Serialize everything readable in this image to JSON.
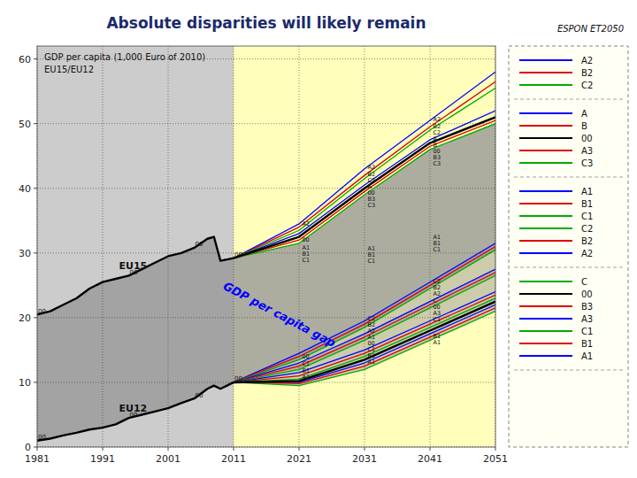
{
  "chart_data": {
    "type": "line",
    "title": "Absolute disparities will likely remain",
    "subtitle": [
      "GDP per capita (1,000 Euro of 2010)",
      "EU15/EU12"
    ],
    "xlim": [
      1981,
      2051
    ],
    "xticks": [
      1981,
      1991,
      2001,
      2011,
      2021,
      2031,
      2041,
      2051
    ],
    "ylim": [
      0,
      62
    ],
    "yticks": [
      0,
      10,
      20,
      30,
      40,
      50,
      60
    ],
    "grid": true,
    "regions": [
      {
        "from": 1981,
        "to": 2011,
        "color": "#cccccc"
      },
      {
        "from": 2011,
        "to": 2051,
        "color": "#ffffbb"
      }
    ],
    "series": [
      {
        "color": "#000000",
        "x": [
          1981,
          1983,
          1985,
          1987,
          1989,
          1991,
          1993,
          1995,
          1997,
          1999,
          2001,
          2003,
          2005,
          2007,
          2008,
          2009,
          2010,
          2011
        ],
        "values": [
          20.5,
          21.0,
          22.0,
          23.0,
          24.5,
          25.5,
          26.0,
          26.5,
          27.5,
          28.5,
          29.5,
          30.0,
          30.8,
          32.2,
          32.5,
          28.8,
          29.0,
          29.2
        ]
      },
      {
        "color": "#000000",
        "x": [
          1981,
          1983,
          1985,
          1987,
          1989,
          1991,
          1993,
          1995,
          1997,
          1999,
          2001,
          2003,
          2005,
          2007,
          2008,
          2009,
          2010,
          2011
        ],
        "values": [
          1.0,
          1.3,
          1.8,
          2.2,
          2.7,
          3.0,
          3.5,
          4.5,
          5.0,
          5.5,
          6.0,
          6.8,
          7.5,
          9.0,
          9.5,
          9.0,
          9.5,
          10.0
        ]
      },
      {
        "color": "#0000ff",
        "x": [
          2011,
          2021,
          2031,
          2041,
          2051
        ],
        "values": [
          29.2,
          34.5,
          43.0,
          50.5,
          58.0
        ]
      },
      {
        "color": "#dd0000",
        "x": [
          2011,
          2021,
          2031,
          2041,
          2051
        ],
        "values": [
          29.2,
          34.0,
          42.0,
          49.5,
          56.5
        ]
      },
      {
        "color": "#00aa00",
        "x": [
          2011,
          2021,
          2031,
          2041,
          2051
        ],
        "values": [
          29.2,
          33.5,
          41.5,
          49.0,
          55.5
        ]
      },
      {
        "color": "#0000ff",
        "x": [
          2011,
          2021,
          2031,
          2041,
          2051
        ],
        "values": [
          29.2,
          33.0,
          40.5,
          47.5,
          52.0
        ]
      },
      {
        "color": "#000000",
        "x": [
          2011,
          2021,
          2031,
          2041,
          2051
        ],
        "values": [
          29.2,
          32.5,
          40.0,
          47.0,
          51.0
        ]
      },
      {
        "color": "#dd0000",
        "x": [
          2011,
          2021,
          2031,
          2041,
          2051
        ],
        "values": [
          29.2,
          32.0,
          39.5,
          46.5,
          50.5
        ]
      },
      {
        "color": "#00aa00",
        "x": [
          2011,
          2021,
          2031,
          2041,
          2051
        ],
        "values": [
          29.2,
          31.5,
          39.0,
          46.0,
          50.0
        ]
      },
      {
        "color": "#0000ff",
        "x": [
          2011,
          2021,
          2031,
          2041,
          2051
        ],
        "values": [
          10.0,
          14.5,
          19.5,
          25.5,
          31.5
        ]
      },
      {
        "color": "#dd0000",
        "x": [
          2011,
          2021,
          2031,
          2041,
          2051
        ],
        "values": [
          10.0,
          14.0,
          19.0,
          25.0,
          31.0
        ]
      },
      {
        "color": "#00aa00",
        "x": [
          2011,
          2021,
          2031,
          2041,
          2051
        ],
        "values": [
          10.0,
          13.5,
          18.5,
          24.5,
          30.5
        ]
      },
      {
        "color": "#0000ff",
        "x": [
          2011,
          2021,
          2031,
          2041,
          2051
        ],
        "values": [
          10.0,
          13.0,
          17.5,
          22.5,
          27.5
        ]
      },
      {
        "color": "#dd0000",
        "x": [
          2011,
          2021,
          2031,
          2041,
          2051
        ],
        "values": [
          10.0,
          12.5,
          17.0,
          22.0,
          27.0
        ]
      },
      {
        "color": "#00aa00",
        "x": [
          2011,
          2021,
          2031,
          2041,
          2051
        ],
        "values": [
          10.0,
          12.0,
          16.5,
          21.5,
          26.5
        ]
      },
      {
        "color": "#0000ff",
        "x": [
          2011,
          2021,
          2031,
          2041,
          2051
        ],
        "values": [
          10.0,
          11.5,
          15.0,
          19.5,
          24.0
        ]
      },
      {
        "color": "#dd0000",
        "x": [
          2011,
          2021,
          2031,
          2041,
          2051
        ],
        "values": [
          10.0,
          11.0,
          14.5,
          19.0,
          23.5
        ]
      },
      {
        "color": "#00aa00",
        "x": [
          2011,
          2021,
          2031,
          2041,
          2051
        ],
        "values": [
          10.0,
          10.5,
          14.0,
          18.5,
          23.0
        ]
      },
      {
        "color": "#000000",
        "x": [
          2011,
          2021,
          2031,
          2041,
          2051
        ],
        "values": [
          10.0,
          10.2,
          13.5,
          18.0,
          22.5
        ]
      },
      {
        "color": "#0000ff",
        "x": [
          2011,
          2021,
          2031,
          2041,
          2051
        ],
        "values": [
          10.0,
          10.0,
          13.0,
          17.5,
          22.0
        ]
      },
      {
        "color": "#dd0000",
        "x": [
          2011,
          2021,
          2031,
          2041,
          2051
        ],
        "values": [
          10.0,
          9.8,
          12.5,
          17.0,
          21.5
        ]
      },
      {
        "color": "#00aa00",
        "x": [
          2011,
          2021,
          2031,
          2041,
          2051
        ],
        "values": [
          10.0,
          9.5,
          12.0,
          16.5,
          21.0
        ]
      }
    ],
    "annotations": [
      {
        "text": "00",
        "x": 1981,
        "y": 20.5
      },
      {
        "text": "00",
        "x": 1995,
        "y": 26.5
      },
      {
        "text": "00",
        "x": 2005,
        "y": 30.8
      },
      {
        "text": "00",
        "x": 2011,
        "y": 29.2
      },
      {
        "text": "00",
        "x": 1981,
        "y": 1.0
      },
      {
        "text": "00",
        "x": 1995,
        "y": 4.5
      },
      {
        "text": "00",
        "x": 2005,
        "y": 7.5
      },
      {
        "text": "00",
        "x": 2011,
        "y": 10.0
      },
      {
        "text": "EU15",
        "x": 1993.5,
        "y": 27.5
      },
      {
        "text": "EU12",
        "x": 1993.5,
        "y": 5.5
      },
      {
        "text": "GDP per capita gap",
        "x": 2018,
        "y": 20.5,
        "color": "blue"
      },
      {
        "text": "A2",
        "x": 2021.2,
        "y": 34.5
      },
      {
        "text": "00",
        "x": 2021.2,
        "y": 32.0
      },
      {
        "text": "A1",
        "x": 2021.2,
        "y": 30.8
      },
      {
        "text": "B1",
        "x": 2021.2,
        "y": 30.0
      },
      {
        "text": "C1",
        "x": 2021.2,
        "y": 29.0
      },
      {
        "text": "00",
        "x": 2021.2,
        "y": 14.0
      },
      {
        "text": "C1",
        "x": 2021.2,
        "y": 12.8
      },
      {
        "text": "B1",
        "x": 2021.2,
        "y": 11.8
      },
      {
        "text": "A1",
        "x": 2021.2,
        "y": 10.9
      },
      {
        "text": "A2",
        "x": 2031.2,
        "y": 43.2
      },
      {
        "text": "B2",
        "x": 2031.2,
        "y": 42.1
      },
      {
        "text": "C2",
        "x": 2031.2,
        "y": 41.6
      },
      {
        "text": "A",
        "x": 2031.2,
        "y": 40.6
      },
      {
        "text": "00",
        "x": 2031.2,
        "y": 40.1
      },
      {
        "text": "B3",
        "x": 2031.2,
        "y": 39.6
      },
      {
        "text": "C3",
        "x": 2031.2,
        "y": 39.1
      },
      {
        "text": "A1",
        "x": 2031.2,
        "y": 30.6
      },
      {
        "text": "B1",
        "x": 2031.2,
        "y": 30.0
      },
      {
        "text": "C1",
        "x": 2031.2,
        "y": 29.5
      },
      {
        "text": "C2",
        "x": 2031.2,
        "y": 19.8
      },
      {
        "text": "B2",
        "x": 2031.2,
        "y": 19.2
      },
      {
        "text": "A2",
        "x": 2031.2,
        "y": 18.6
      },
      {
        "text": "A1",
        "x": 2031.2,
        "y": 17.6
      },
      {
        "text": "00",
        "x": 2031.2,
        "y": 17.0
      },
      {
        "text": "C1",
        "x": 2031.2,
        "y": 16.4
      },
      {
        "text": "B1",
        "x": 2031.2,
        "y": 15.8
      },
      {
        "text": "A1",
        "x": 2031.2,
        "y": 15.2
      },
      {
        "text": "A2",
        "x": 2041.2,
        "y": 50.6
      },
      {
        "text": "B2",
        "x": 2041.2,
        "y": 49.6
      },
      {
        "text": "C2",
        "x": 2041.2,
        "y": 49.1
      },
      {
        "text": "A",
        "x": 2041.2,
        "y": 47.6
      },
      {
        "text": "B",
        "x": 2041.2,
        "y": 47.1
      },
      {
        "text": "00",
        "x": 2041.2,
        "y": 46.6
      },
      {
        "text": "B3",
        "x": 2041.2,
        "y": 46.1
      },
      {
        "text": "C3",
        "x": 2041.2,
        "y": 45.6
      },
      {
        "text": "A1",
        "x": 2041.2,
        "y": 32.5
      },
      {
        "text": "B1",
        "x": 2041.2,
        "y": 31.8
      },
      {
        "text": "C1",
        "x": 2041.2,
        "y": 31.2
      },
      {
        "text": "C2",
        "x": 2041.2,
        "y": 25.6
      },
      {
        "text": "B2",
        "x": 2041.2,
        "y": 25.1
      },
      {
        "text": "A2",
        "x": 2041.2,
        "y": 24.0
      },
      {
        "text": "C",
        "x": 2041.2,
        "y": 22.6
      },
      {
        "text": "00",
        "x": 2041.2,
        "y": 22.1
      },
      {
        "text": "A3",
        "x": 2041.2,
        "y": 21.6
      },
      {
        "text": "C1",
        "x": 2041.2,
        "y": 21.1
      },
      {
        "text": "B1",
        "x": 2041.2,
        "y": 17.1
      },
      {
        "text": "A1",
        "x": 2041.2,
        "y": 16.5
      },
      {
        "text": "ESPON ET2050"
      }
    ],
    "legend_groups": [
      [
        {
          "name": "A2",
          "color": "#0000ff"
        },
        {
          "name": "B2",
          "color": "#dd0000"
        },
        {
          "name": "C2",
          "color": "#00aa00"
        }
      ],
      [
        {
          "name": "A",
          "color": "#0000ff"
        },
        {
          "name": "B",
          "color": "#dd0000"
        },
        {
          "name": "00",
          "color": "#000000"
        },
        {
          "name": "A3",
          "color": "#dd0000"
        },
        {
          "name": "C3",
          "color": "#00aa00"
        }
      ],
      [
        {
          "name": "A1",
          "color": "#0000ff"
        },
        {
          "name": "B1",
          "color": "#dd0000"
        },
        {
          "name": "C1",
          "color": "#00aa00"
        },
        {
          "name": "C2",
          "color": "#00aa00"
        },
        {
          "name": "B2",
          "color": "#dd0000"
        },
        {
          "name": "A2",
          "color": "#0000ff"
        }
      ],
      [
        {
          "name": "C",
          "color": "#00aa00"
        },
        {
          "name": "00",
          "color": "#000000"
        },
        {
          "name": "B3",
          "color": "#dd0000"
        },
        {
          "name": "A3",
          "color": "#0000ff"
        },
        {
          "name": "C1",
          "color": "#00aa00"
        },
        {
          "name": "B1",
          "color": "#dd0000"
        },
        {
          "name": "A1",
          "color": "#0000ff"
        }
      ]
    ]
  }
}
